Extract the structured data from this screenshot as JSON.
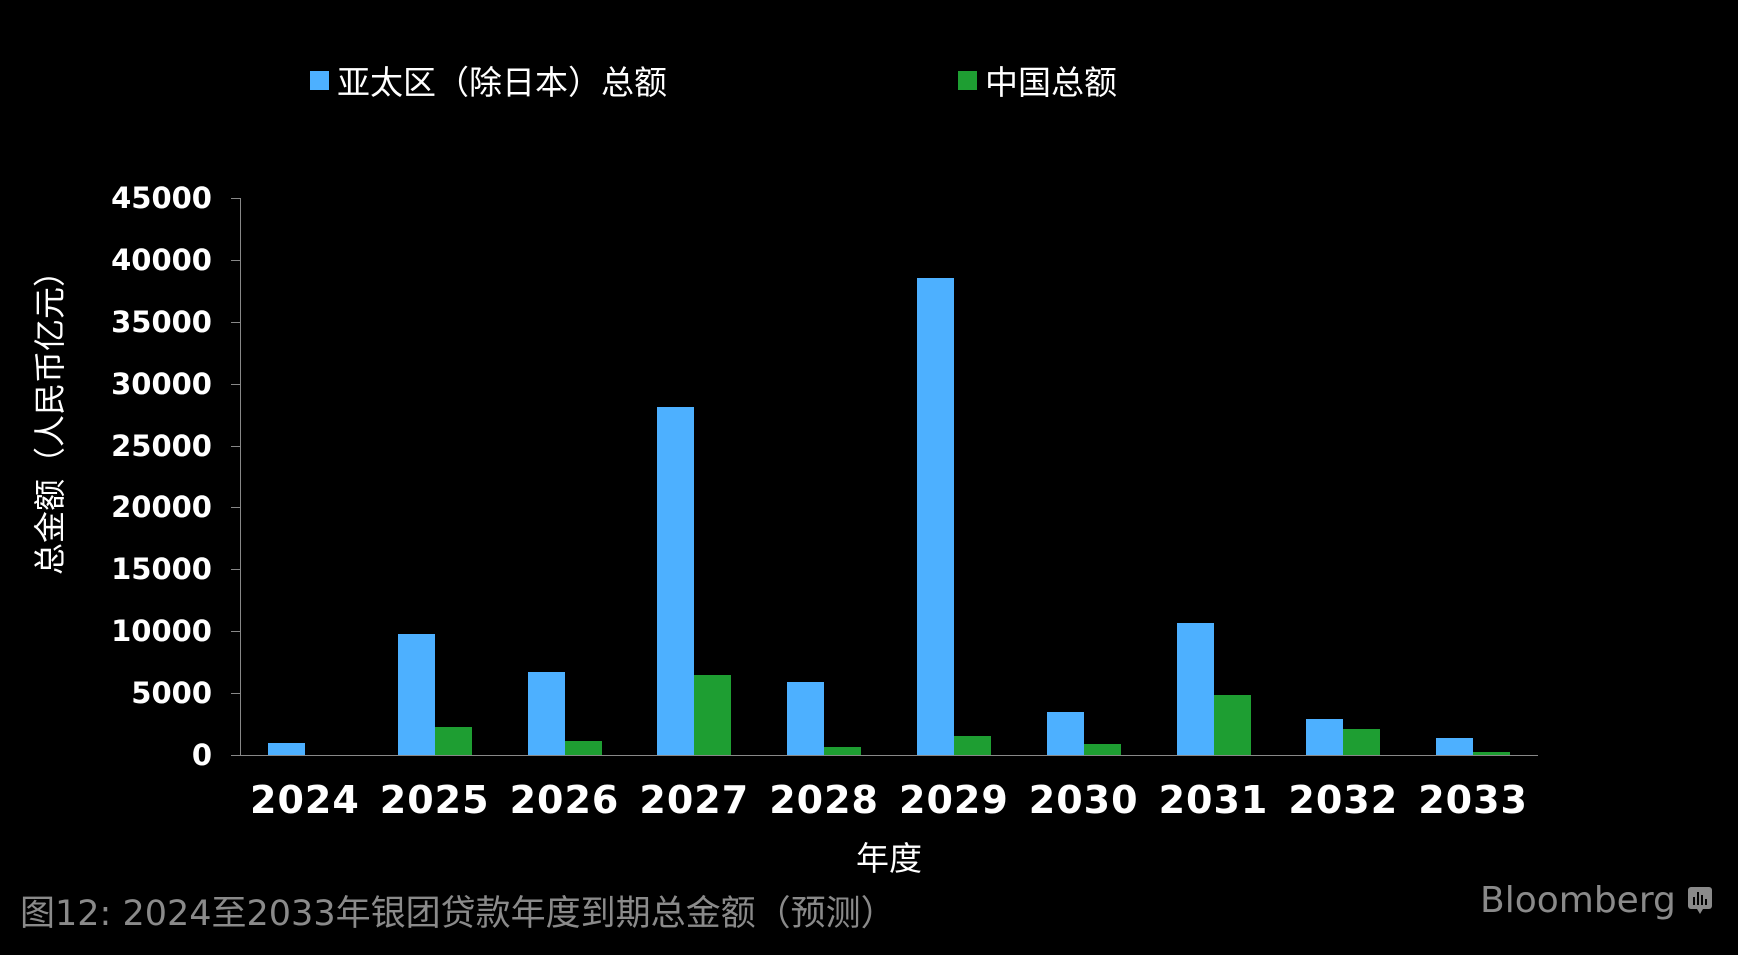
{
  "chart_data": {
    "type": "bar",
    "title": "图12: 2024至2033年银团贷款年度到期总金额（预测）",
    "xlabel": "年度",
    "ylabel": "总金额（人民币亿元）",
    "ylim": [
      0,
      45000
    ],
    "yticks": [
      0,
      5000,
      10000,
      15000,
      20000,
      25000,
      30000,
      35000,
      40000,
      45000
    ],
    "grid": false,
    "legend_position": "top",
    "categories": [
      "2024",
      "2025",
      "2026",
      "2027",
      "2028",
      "2029",
      "2030",
      "2031",
      "2032",
      "2033"
    ],
    "series": [
      {
        "name": "亚太区（除日本）总额",
        "color": "#4db0ff",
        "values": [
          1000,
          9800,
          6700,
          28100,
          5900,
          38500,
          3500,
          10700,
          2900,
          1400
        ]
      },
      {
        "name": "中国总额",
        "color": "#1e9e32",
        "values": [
          0,
          2250,
          1100,
          6500,
          650,
          1500,
          900,
          4850,
          2100,
          250
        ]
      }
    ]
  },
  "legend": {
    "items": [
      {
        "label": "亚太区（除日本）总额",
        "color": "#4db0ff"
      },
      {
        "label": "中国总额",
        "color": "#1e9e32"
      }
    ]
  },
  "axes": {
    "ylabel": "总金额（人民币亿元）",
    "xlabel": "年度",
    "yticks": [
      "0",
      "5000",
      "10000",
      "15000",
      "20000",
      "25000",
      "30000",
      "35000",
      "40000",
      "45000"
    ],
    "xticks": [
      "2024",
      "2025",
      "2026",
      "2027",
      "2028",
      "2029",
      "2030",
      "2031",
      "2032",
      "2033"
    ]
  },
  "caption": "图12: 2024至2033年银团贷款年度到期总金额（预测）",
  "brand": {
    "name": "Bloomberg",
    "icon": "bloomberg-chart-icon"
  }
}
